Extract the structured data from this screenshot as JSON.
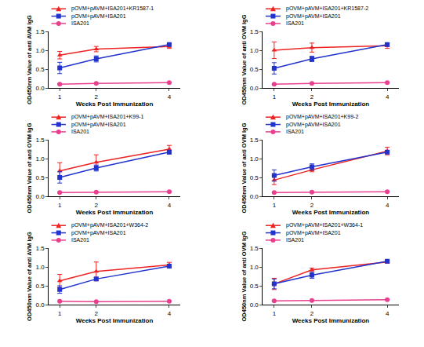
{
  "chart_data": [
    {
      "type": "line",
      "x_label": "Weeks Post Immunization",
      "y_label": "OD450nm Value of anti AVM IgG",
      "x": [
        1,
        2,
        4
      ],
      "xlim": [
        0.7,
        4.3
      ],
      "xticks": [
        1,
        2,
        4
      ],
      "ylim": [
        0,
        1.5
      ],
      "yticks": [
        {
          "value": 0,
          "label": "0.0"
        },
        0.5,
        {
          "value": 1,
          "label": "1.0"
        },
        1.5
      ],
      "grid": false,
      "legend": "upper left",
      "series": [
        {
          "name": "pOVM+pAVM+ISA201+KR1587-1",
          "color": "#ee2222",
          "marker": "triangle-up",
          "values": [
            0.87,
            1.03,
            1.1
          ],
          "errors": [
            0.1,
            0.07,
            0.05
          ]
        },
        {
          "name": "pOVM+pAVM+ISA201",
          "color": "#2233cc",
          "marker": "square",
          "values": [
            0.53,
            0.77,
            1.15
          ],
          "errors": [
            0.15,
            0.08,
            0.03
          ]
        },
        {
          "name": "ISA201",
          "color": "#e8408e",
          "marker": "circle",
          "values": [
            0.1,
            0.12,
            0.14
          ],
          "errors": [
            0.01,
            0.01,
            0.01
          ]
        }
      ]
    },
    {
      "type": "line",
      "x_label": "Weeks Post Immunization",
      "y_label": "OD450nm Value of anti OVM IgG",
      "x": [
        1,
        2,
        4
      ],
      "xlim": [
        0.7,
        4.3
      ],
      "xticks": [
        1,
        2,
        4
      ],
      "ylim": [
        0,
        1.5
      ],
      "yticks": [
        {
          "value": 0,
          "label": "0.0"
        },
        0.5,
        {
          "value": 1,
          "label": "1.0"
        },
        1.5
      ],
      "grid": false,
      "legend": "upper left",
      "series": [
        {
          "name": "pOVM+pAVM+ISA201+KR1587-2",
          "color": "#ee2222",
          "marker": "triangle-up",
          "values": [
            1.0,
            1.07,
            1.12
          ],
          "errors": [
            0.22,
            0.12,
            0.07
          ]
        },
        {
          "name": "pOVM+pAVM+ISA201",
          "color": "#2233cc",
          "marker": "square",
          "values": [
            0.52,
            0.77,
            1.15
          ],
          "errors": [
            0.15,
            0.07,
            0.03
          ]
        },
        {
          "name": "ISA201",
          "color": "#e8408e",
          "marker": "circle",
          "values": [
            0.1,
            0.12,
            0.14
          ],
          "errors": [
            0.01,
            0.01,
            0.01
          ]
        }
      ]
    },
    {
      "type": "line",
      "x_label": "Weeks Post Immunization",
      "y_label": "OD450nm Value of anti OVM IgG",
      "x": [
        1,
        2,
        4
      ],
      "xlim": [
        0.7,
        4.3
      ],
      "xticks": [
        1,
        2,
        4
      ],
      "ylim": [
        0,
        1.5
      ],
      "yticks": [
        {
          "value": 0,
          "label": "0.0"
        },
        0.5,
        {
          "value": 1,
          "label": "1.0"
        },
        1.5
      ],
      "grid": false,
      "legend": "upper left",
      "series": [
        {
          "name": "pOVM+pAVM+ISA201+K99-1",
          "color": "#ee2222",
          "marker": "triangle-up",
          "values": [
            0.67,
            0.9,
            1.25
          ],
          "errors": [
            0.22,
            0.2,
            0.1
          ]
        },
        {
          "name": "pOVM+pAVM+ISA201",
          "color": "#2233cc",
          "marker": "square",
          "values": [
            0.5,
            0.75,
            1.17
          ],
          "errors": [
            0.15,
            0.08,
            0.05
          ]
        },
        {
          "name": "ISA201",
          "color": "#e8408e",
          "marker": "circle",
          "values": [
            0.1,
            0.11,
            0.12
          ],
          "errors": [
            0.01,
            0.01,
            0.01
          ]
        }
      ]
    },
    {
      "type": "line",
      "x_label": "Weeks Post Immunization",
      "y_label": "OD450nm Value of anti OVM IgG",
      "x": [
        1,
        2,
        4
      ],
      "xlim": [
        0.7,
        4.3
      ],
      "xticks": [
        1,
        2,
        4
      ],
      "ylim": [
        0,
        1.5
      ],
      "yticks": [
        {
          "value": 0,
          "label": "0.0"
        },
        0.5,
        {
          "value": 1,
          "label": "1.0"
        },
        1.5
      ],
      "grid": false,
      "legend": "upper left",
      "series": [
        {
          "name": "pOVM+pAVM+ISA201+K99-2",
          "color": "#ee2222",
          "marker": "triangle-up",
          "values": [
            0.43,
            0.7,
            1.2
          ],
          "errors": [
            0.12,
            0.05,
            0.1
          ]
        },
        {
          "name": "pOVM+pAVM+ISA201",
          "color": "#2233cc",
          "marker": "square",
          "values": [
            0.55,
            0.78,
            1.17
          ],
          "errors": [
            0.15,
            0.08,
            0.04
          ]
        },
        {
          "name": "ISA201",
          "color": "#e8408e",
          "marker": "circle",
          "values": [
            0.1,
            0.11,
            0.12
          ],
          "errors": [
            0.01,
            0.01,
            0.01
          ]
        }
      ]
    },
    {
      "type": "line",
      "x_label": "Weeks Post Immunization",
      "y_label": "OD450nm Value of anti AVM IgG",
      "x": [
        1,
        2,
        4
      ],
      "xlim": [
        0.7,
        4.3
      ],
      "xticks": [
        1,
        2,
        4
      ],
      "ylim": [
        0,
        1.5
      ],
      "yticks": [
        {
          "value": 0,
          "label": "0.0"
        },
        0.5,
        {
          "value": 1,
          "label": "1.0"
        },
        1.5
      ],
      "grid": false,
      "legend": "upper left",
      "series": [
        {
          "name": "pOVM+pAVM+ISA201+W364-2",
          "color": "#ee2222",
          "marker": "triangle-up",
          "values": [
            0.63,
            0.88,
            1.05
          ],
          "errors": [
            0.17,
            0.25,
            0.07
          ]
        },
        {
          "name": "pOVM+pAVM+ISA201",
          "color": "#2233cc",
          "marker": "square",
          "values": [
            0.4,
            0.68,
            1.02
          ],
          "errors": [
            0.1,
            0.04,
            0.05
          ]
        },
        {
          "name": "ISA201",
          "color": "#e8408e",
          "marker": "circle",
          "values": [
            0.09,
            0.08,
            0.09
          ],
          "errors": [
            0.01,
            0.01,
            0.01
          ]
        }
      ]
    },
    {
      "type": "line",
      "x_label": "Weeks Post Immunization",
      "y_label": "OD450nm Value of anti OVM IgG",
      "x": [
        1,
        2,
        4
      ],
      "xlim": [
        0.7,
        4.3
      ],
      "xticks": [
        1,
        2,
        4
      ],
      "ylim": [
        0,
        1.5
      ],
      "yticks": [
        {
          "value": 0,
          "label": "0.0"
        },
        0.5,
        {
          "value": 1,
          "label": "1.0"
        },
        1.5
      ],
      "grid": false,
      "legend": "upper left",
      "series": [
        {
          "name": "pOVM+pAVM+ISA201+W364-1",
          "color": "#ee2222",
          "marker": "triangle-up",
          "values": [
            0.55,
            0.92,
            1.13
          ],
          "errors": [
            0.15,
            0.05,
            0.03
          ]
        },
        {
          "name": "pOVM+pAVM+ISA201",
          "color": "#2233cc",
          "marker": "square",
          "values": [
            0.55,
            0.78,
            1.15
          ],
          "errors": [
            0.13,
            0.08,
            0.03
          ]
        },
        {
          "name": "ISA201",
          "color": "#e8408e",
          "marker": "circle",
          "values": [
            0.1,
            0.11,
            0.13
          ],
          "errors": [
            0.01,
            0.01,
            0.01
          ]
        }
      ]
    }
  ]
}
